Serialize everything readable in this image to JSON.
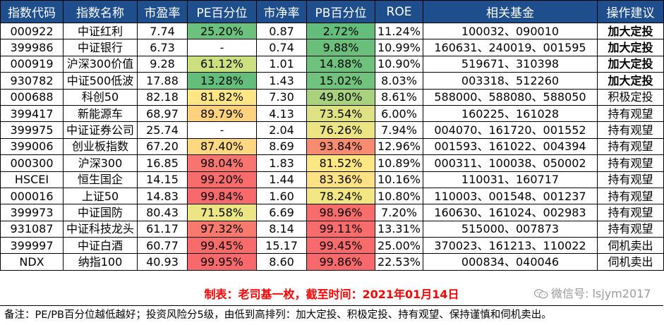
{
  "table": {
    "headers": [
      "指数代码",
      "指数名称",
      "市盈率",
      "PE百分位",
      "市净率",
      "PB百分位",
      "ROE",
      "相关基金",
      "操作建议"
    ],
    "colors": {
      "header_bg": "#1f4e8c",
      "pe_pb_scale": [
        "#63be7b",
        "#b7d77a",
        "#fde983",
        "#f98e6f",
        "#f8696b"
      ]
    },
    "rows": [
      {
        "code": "000922",
        "name": "中证红利",
        "pe": "7.74",
        "pe_pct": "25.20%",
        "pe_color": "#6cc17c",
        "pb": "0.87",
        "pb_pct": "2.72%",
        "pb_color": "#63be7b",
        "roe": "11.24%",
        "funds": "100032、090010",
        "advice": "加大定投",
        "bold": true
      },
      {
        "code": "399986",
        "name": "中证银行",
        "pe": "6.73",
        "pe_pct": "-",
        "pe_color": "#ffffff",
        "pb": "0.74",
        "pb_pct": "9.88%",
        "pb_color": "#6ac07b",
        "roe": "10.99%",
        "funds": "160631、240019、001595",
        "advice": "加大定投",
        "bold": true
      },
      {
        "code": "000919",
        "name": "沪深300价值",
        "pe": "9.28",
        "pe_pct": "61.12%",
        "pe_color": "#cde07f",
        "pb": "1.01",
        "pb_pct": "14.88%",
        "pb_color": "#6fc27c",
        "roe": "10.90%",
        "funds": "519671、310398",
        "advice": "加大定投",
        "bold": true
      },
      {
        "code": "930782",
        "name": "中证500低波",
        "pe": "17.88",
        "pe_pct": "13.28%",
        "pe_color": "#63be7b",
        "pb": "1.43",
        "pb_pct": "15.02%",
        "pb_color": "#70c27c",
        "roe": "8.03%",
        "funds": "003318、512260",
        "advice": "加大定投",
        "bold": true
      },
      {
        "code": "000688",
        "name": "科创50",
        "pe": "82.18",
        "pe_pct": "81.82%",
        "pe_color": "#fde683",
        "pb": "7.30",
        "pb_pct": "49.80%",
        "pb_color": "#a9d27f",
        "roe": "8.61%",
        "funds": "588000、588080、588050",
        "advice": "积极定投",
        "bold": false
      },
      {
        "code": "399417",
        "name": "新能源车",
        "pe": "68.97",
        "pe_pct": "89.79%",
        "pe_color": "#fdd27f",
        "pb": "4.13",
        "pb_pct": "73.54%",
        "pb_color": "#dfe282",
        "roe": "6.00%",
        "funds": "160225、161028",
        "advice": "持有观望",
        "bold": false
      },
      {
        "code": "399975",
        "name": "中证证券公司",
        "pe": "25.74",
        "pe_pct": "-",
        "pe_color": "#ffffff",
        "pb": "2.04",
        "pb_pct": "76.26%",
        "pb_color": "#ebe583",
        "roe": "7.94%",
        "funds": "004070、161720、001552",
        "advice": "持有观望",
        "bold": false
      },
      {
        "code": "399006",
        "name": "创业板指数",
        "pe": "67.20",
        "pe_pct": "87.40%",
        "pe_color": "#fdd880",
        "pb": "8.69",
        "pb_pct": "93.84%",
        "pb_color": "#f98c70",
        "roe": "12.96%",
        "funds": "001593、161022、004394",
        "advice": "持有观望",
        "bold": false
      },
      {
        "code": "000300",
        "name": "沪深300",
        "pe": "16.85",
        "pe_pct": "98.04%",
        "pe_color": "#f8746e",
        "pb": "1.83",
        "pb_pct": "81.52%",
        "pb_color": "#fde783",
        "roe": "10.89%",
        "funds": "000311、100038、050002",
        "advice": "持有观望",
        "bold": false
      },
      {
        "code": "HSCEI",
        "name": "恒生国企",
        "pe": "14.15",
        "pe_pct": "99.20%",
        "pe_color": "#f86d6c",
        "pb": "1.44",
        "pb_pct": "83.36%",
        "pb_color": "#fde182",
        "roe": "10.16%",
        "funds": "110031、160717",
        "advice": "持有观望",
        "bold": false
      },
      {
        "code": "000016",
        "name": "上证50",
        "pe": "14.83",
        "pe_pct": "99.84%",
        "pe_color": "#f8696b",
        "pb": "1.60",
        "pb_pct": "78.24%",
        "pb_color": "#f2e683",
        "roe": "10.80%",
        "funds": "110003、001548、001237",
        "advice": "持有观望",
        "bold": false
      },
      {
        "code": "399973",
        "name": "中证国防",
        "pe": "80.43",
        "pe_pct": "71.58%",
        "pe_color": "#ebe583",
        "pb": "6.69",
        "pb_pct": "98.96%",
        "pb_color": "#f86d6c",
        "roe": "7.20%",
        "funds": "160630、161024、002983",
        "advice": "持有观望",
        "bold": false
      },
      {
        "code": "931087",
        "name": "中证科技龙头",
        "pe": "61.17",
        "pe_pct": "97.32%",
        "pe_color": "#f87a6f",
        "pb": "8.14",
        "pb_pct": "99.11%",
        "pb_color": "#f86c6c",
        "roe": "13.31%",
        "funds": "515000、007873",
        "advice": "持有观望",
        "bold": false
      },
      {
        "code": "399997",
        "name": "中证白酒",
        "pe": "60.77",
        "pe_pct": "99.45%",
        "pe_color": "#f86b6b",
        "pb": "15.17",
        "pb_pct": "99.45%",
        "pb_color": "#f86a6b",
        "roe": "25.00%",
        "funds": "370023、161213、110022",
        "advice": "伺机卖出",
        "bold": false
      },
      {
        "code": "NDX",
        "name": "纳指100",
        "pe": "40.93",
        "pe_pct": "99.95%",
        "pe_color": "#f8696b",
        "pb": "8.60",
        "pb_pct": "99.86%",
        "pb_color": "#f8696b",
        "roe": "22.53%",
        "funds": "000834、040046",
        "advice": "伺机卖出",
        "bold": false
      }
    ]
  },
  "caption": "制表：老司基一枚，截至时间：2021年01月14日",
  "caption_color": "#ff0000",
  "watermark": "微信号: lsjym2017",
  "watermark_icon": "wechat-icon",
  "note": "备注：PE/PB百分位越低越好；投资风险分5级，由低到高排列：加大定投、积极定投、持有观望、保持谨慎和伺机卖出。"
}
